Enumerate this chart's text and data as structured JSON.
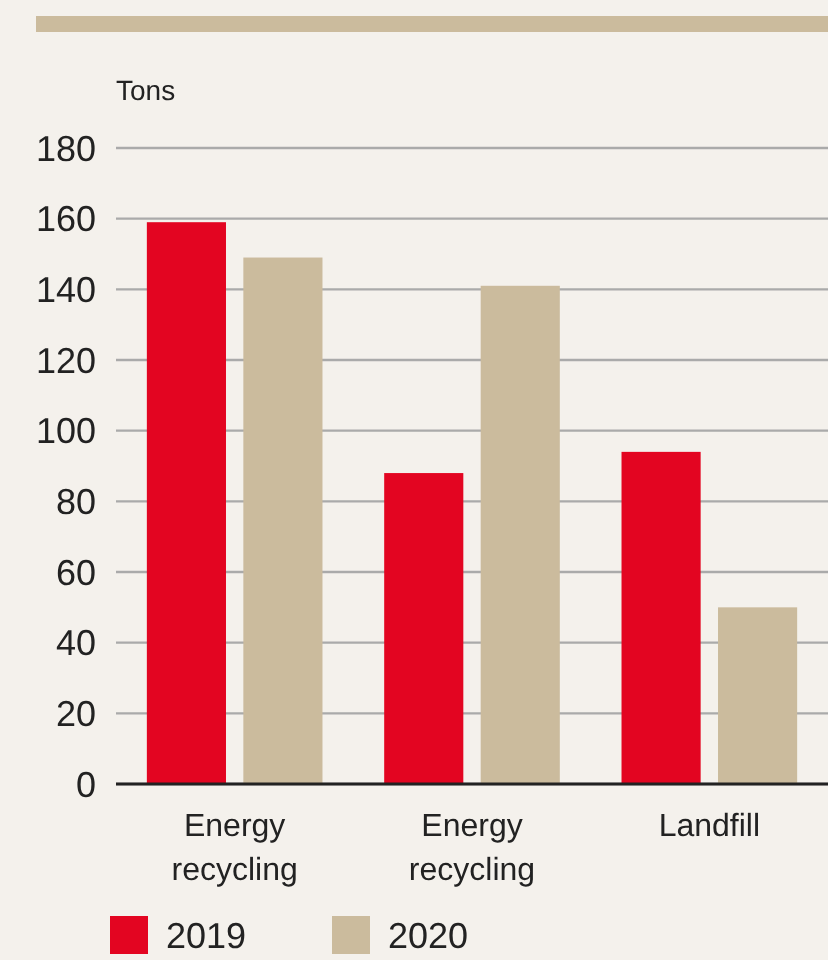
{
  "chart_data": {
    "type": "bar",
    "ylabel": "Tons",
    "categories": [
      "Energy recycling",
      "Energy recycling",
      "Landfill"
    ],
    "series": [
      {
        "name": "2019",
        "color": "#e30521",
        "values": [
          159,
          88,
          94
        ]
      },
      {
        "name": "2020",
        "color": "#cbbb9d",
        "values": [
          149,
          141,
          50
        ]
      }
    ],
    "ylim": [
      0,
      180
    ],
    "yticks": [
      0,
      20,
      40,
      60,
      80,
      100,
      120,
      140,
      160,
      180
    ],
    "grid": "y",
    "legend": "bottom left"
  }
}
